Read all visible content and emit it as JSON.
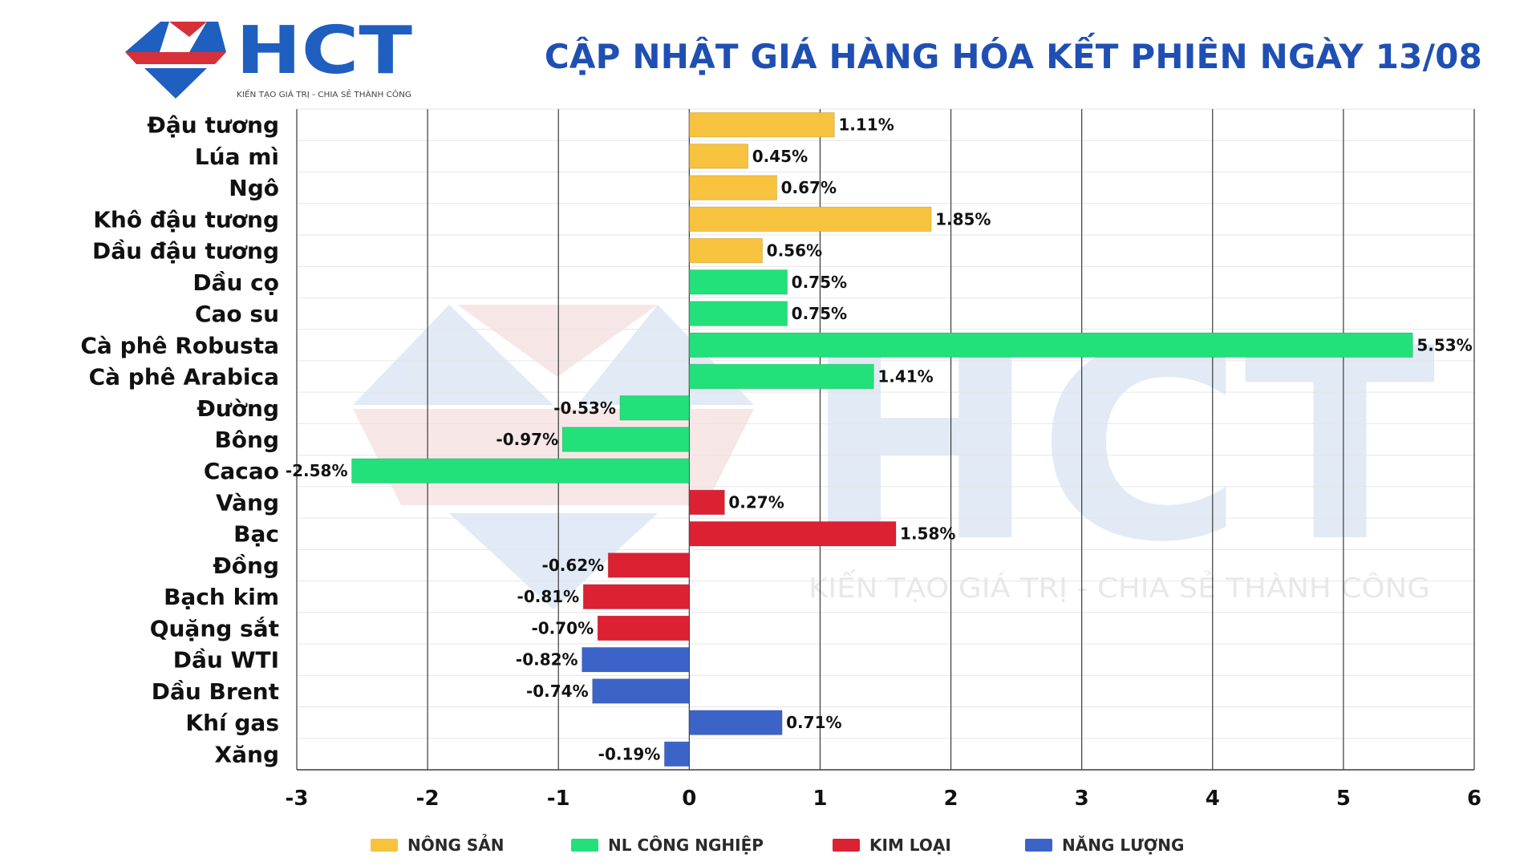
{
  "logo": {
    "name": "HCT",
    "tagline": "KIẾN TẠO GIÁ TRỊ - CHIA SẺ THÀNH CÔNG"
  },
  "header": {
    "title": "CẬP NHẬT GIÁ HÀNG HÓA KẾT PHIÊN NGÀY 13/08"
  },
  "watermark": {
    "text": "HCT",
    "tagline": "KIẾN TẠO GIÁ TRỊ - CHIA SẺ THÀNH CÔNG"
  },
  "colors": {
    "nong_san": "#f7c23e",
    "nl_cong_nghiep": "#22e07a",
    "kim_loai": "#dc2132",
    "nang_luong": "#3c64c8",
    "title": "#1f4fb3",
    "logo_blue": "#1f5fbf",
    "logo_red": "#d8303a"
  },
  "legend": [
    {
      "label": "NÔNG SẢN",
      "group": "nong_san"
    },
    {
      "label": "NL CÔNG NGHIỆP",
      "group": "nl_cong_nghiep"
    },
    {
      "label": "KIM LOẠI",
      "group": "kim_loai"
    },
    {
      "label": "NĂNG LƯỢNG",
      "group": "nang_luong"
    }
  ],
  "chart_data": {
    "type": "bar",
    "orientation": "horizontal",
    "title": "CẬP NHẬT GIÁ HÀNG HÓA KẾT PHIÊN NGÀY 13/08",
    "xlabel": "",
    "ylabel": "",
    "xlim": [
      -3,
      6
    ],
    "xticks": [
      -3,
      -2,
      -1,
      0,
      1,
      2,
      3,
      4,
      5,
      6
    ],
    "grid": "vertical",
    "legend_position": "bottom",
    "categories": [
      "Đậu tương",
      "Lúa mì",
      "Ngô",
      "Khô đậu tương",
      "Dầu đậu tương",
      "Dầu cọ",
      "Cao su",
      "Cà phê Robusta",
      "Cà phê Arabica",
      "Đường",
      "Bông",
      "Cacao",
      "Vàng",
      "Bạc",
      "Đồng",
      "Bạch kim",
      "Quặng sắt",
      "Dầu WTI",
      "Dầu Brent",
      "Khí gas",
      "Xăng"
    ],
    "values": [
      1.11,
      0.45,
      0.67,
      1.85,
      0.56,
      0.75,
      0.75,
      5.53,
      1.41,
      -0.53,
      -0.97,
      -2.58,
      0.27,
      1.58,
      -0.62,
      -0.81,
      -0.7,
      -0.82,
      -0.74,
      0.71,
      -0.19
    ],
    "value_labels": [
      "1.11%",
      "0.45%",
      "0.67%",
      "1.85%",
      "0.56%",
      "0.75%",
      "0.75%",
      "5.53%",
      "1.41%",
      "-0.53%",
      "-0.97%",
      "-2.58%",
      "0.27%",
      "1.58%",
      "-0.62%",
      "-0.81%",
      "-0.70%",
      "-0.82%",
      "-0.74%",
      "0.71%",
      "-0.19%"
    ],
    "groups": [
      "nong_san",
      "nong_san",
      "nong_san",
      "nong_san",
      "nong_san",
      "nl_cong_nghiep",
      "nl_cong_nghiep",
      "nl_cong_nghiep",
      "nl_cong_nghiep",
      "nl_cong_nghiep",
      "nl_cong_nghiep",
      "nl_cong_nghiep",
      "kim_loai",
      "kim_loai",
      "kim_loai",
      "kim_loai",
      "kim_loai",
      "nang_luong",
      "nang_luong",
      "nang_luong",
      "nang_luong"
    ]
  }
}
